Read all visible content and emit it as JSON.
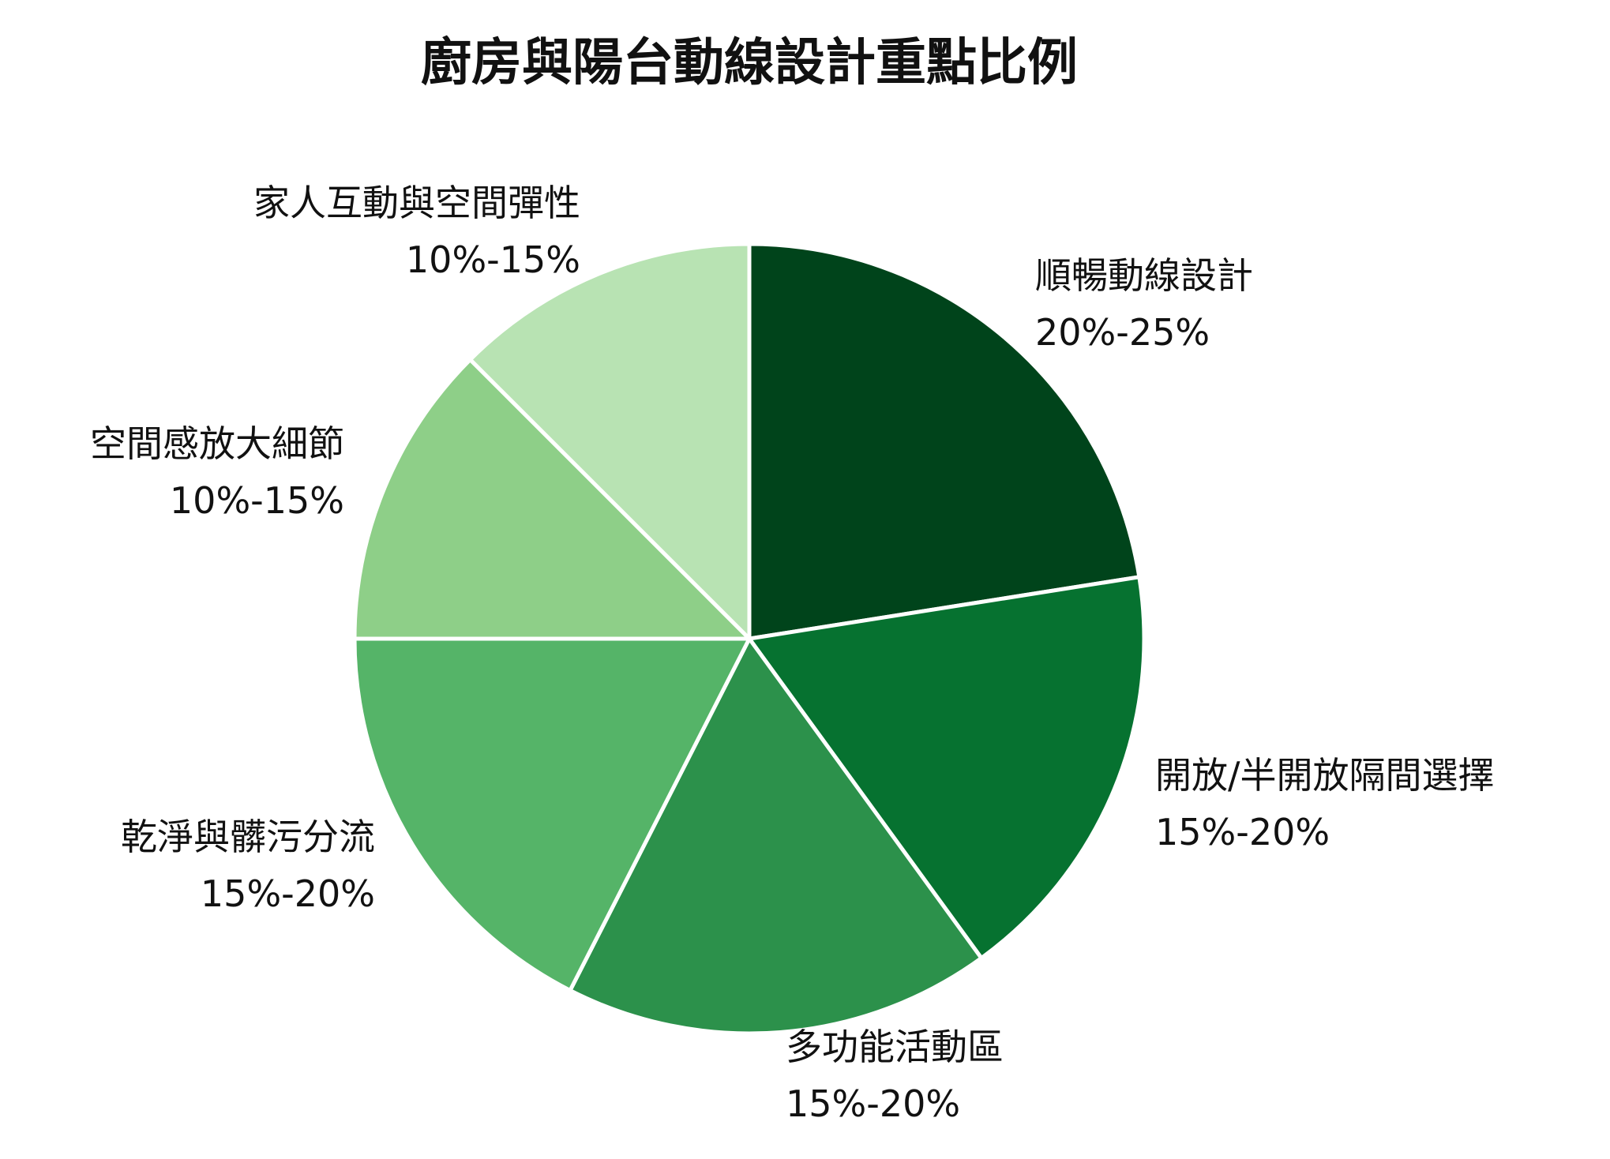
{
  "chart_data": {
    "type": "pie",
    "title": "廚房與陽台動線設計重點比例",
    "start_angle": "12 o'clock",
    "direction": "clockwise",
    "slices": [
      {
        "label": "順暢動線設計",
        "range": "20%-25%",
        "value": 22.5,
        "color": "#00441b"
      },
      {
        "label": "開放/半開放隔間選擇",
        "range": "15%-20%",
        "value": 17.5,
        "color": "#067230"
      },
      {
        "label": "多功能活動區",
        "range": "15%-20%",
        "value": 17.5,
        "color": "#2c914b"
      },
      {
        "label": "乾淨與髒污分流",
        "range": "15%-20%",
        "value": 17.5,
        "color": "#55b468"
      },
      {
        "label": "空間感放大細節",
        "range": "10%-15%",
        "value": 12.5,
        "color": "#8ecf88"
      },
      {
        "label": "家人互動與空間彈性",
        "range": "10%-15%",
        "value": 12.5,
        "color": "#b8e3b3"
      }
    ]
  }
}
